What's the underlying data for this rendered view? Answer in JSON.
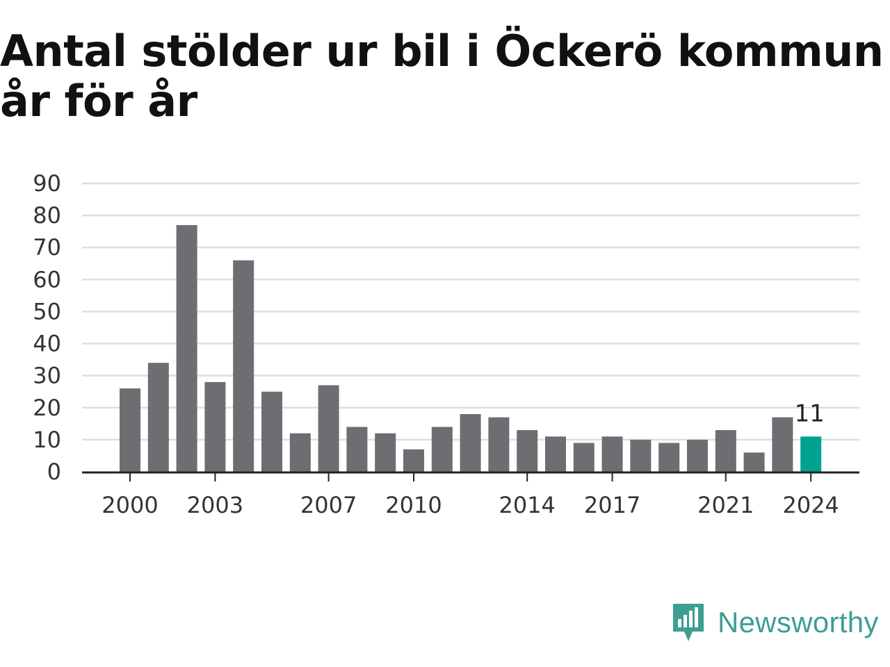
{
  "title": "Antal stölder ur bil i Öckerö kommun år för år",
  "brand": {
    "name": "Newsworthy",
    "icon": "newsworthy-logo-icon",
    "color": "#3e9e92"
  },
  "chart_data": {
    "type": "bar",
    "title": "Antal stölder ur bil i Öckerö kommun år för år",
    "xlabel": "",
    "ylabel": "",
    "categories": [
      "2000",
      "2001",
      "2002",
      "2003",
      "2004",
      "2005",
      "2006",
      "2007",
      "2008",
      "2009",
      "2010",
      "2011",
      "2012",
      "2013",
      "2014",
      "2015",
      "2016",
      "2017",
      "2018",
      "2019",
      "2020",
      "2021",
      "2022",
      "2023",
      "2024"
    ],
    "values": [
      26,
      34,
      77,
      28,
      66,
      25,
      12,
      27,
      14,
      12,
      7,
      14,
      18,
      17,
      13,
      11,
      9,
      11,
      10,
      9,
      10,
      13,
      6,
      17,
      11
    ],
    "x_tick_labels": [
      "2000",
      "2003",
      "2007",
      "2010",
      "2014",
      "2017",
      "2021",
      "2024"
    ],
    "y_ticks": [
      0,
      10,
      20,
      30,
      40,
      50,
      60,
      70,
      80,
      90
    ],
    "ylim": [
      0,
      90
    ],
    "grid": true,
    "bar_color": "#6e6d72",
    "highlight_color": "#00a391",
    "highlight_category": "2024",
    "data_labels": [
      {
        "category": "2024",
        "text": "11"
      }
    ]
  }
}
